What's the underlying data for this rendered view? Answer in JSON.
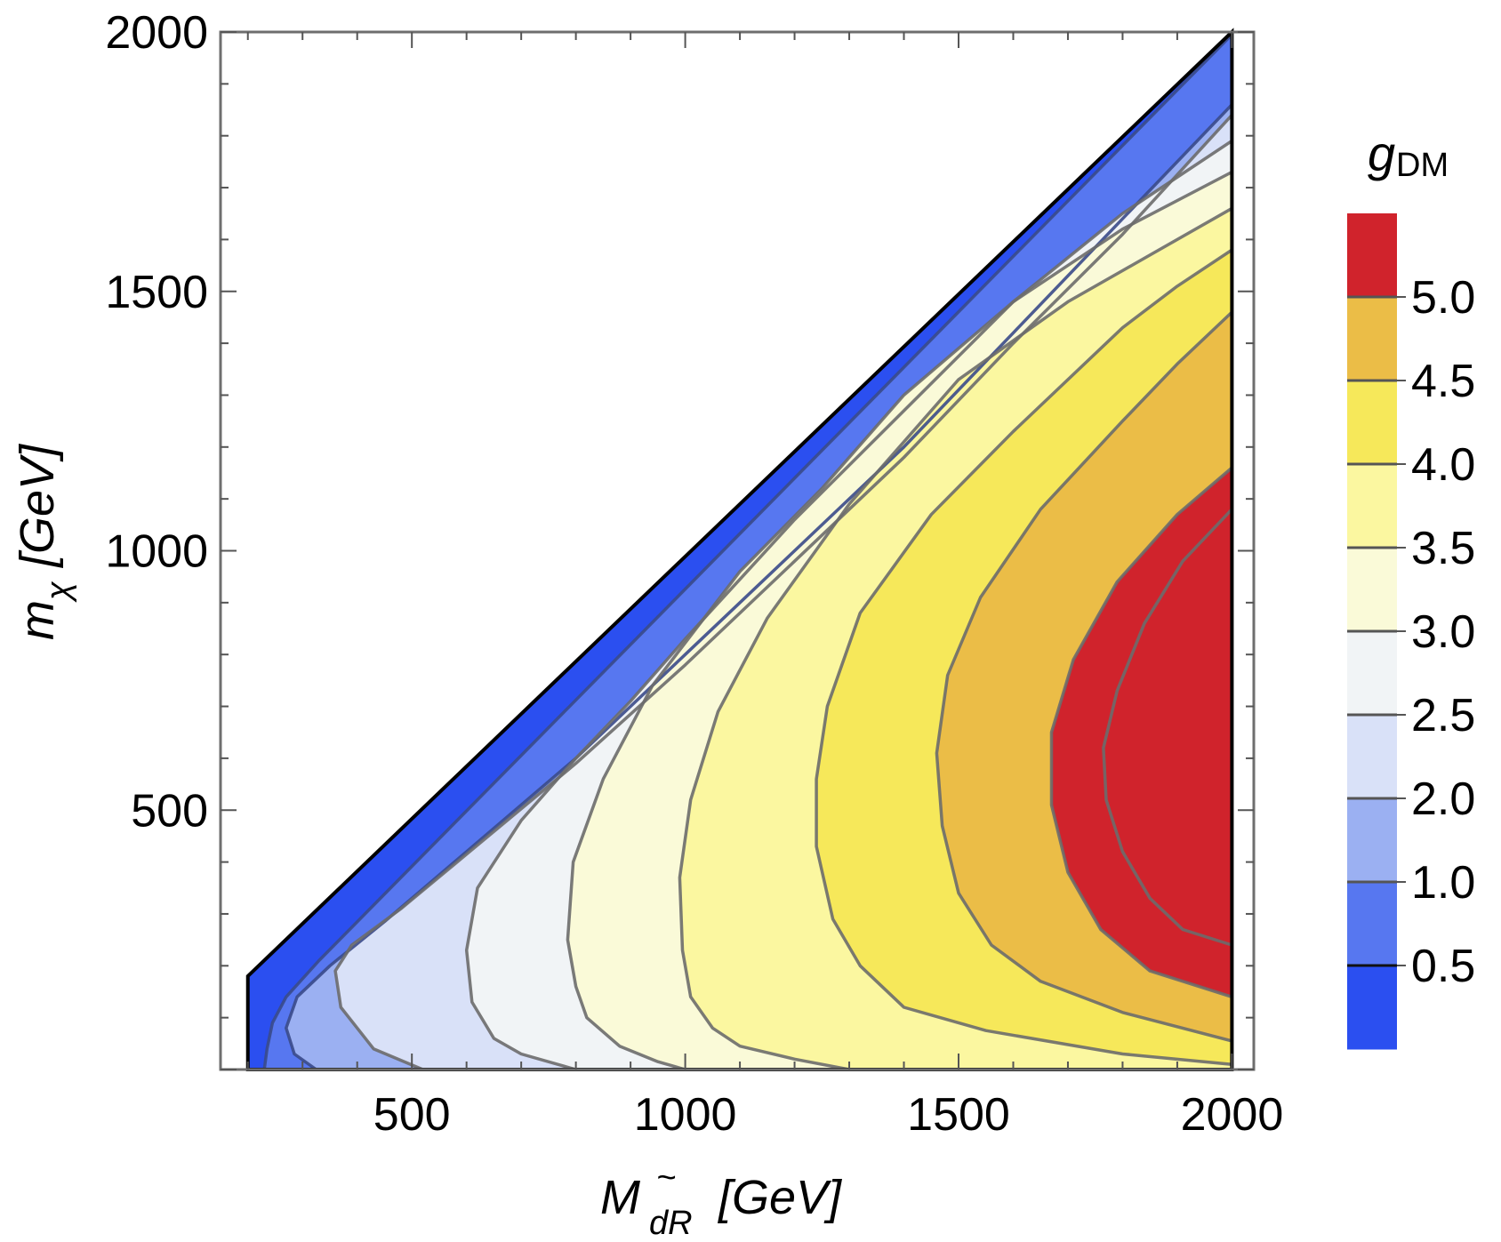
{
  "chart_data": {
    "type": "contour",
    "title": "",
    "xlabel": {
      "main": "M",
      "sub": "dR",
      "accent": "~",
      "units": "[GeV]"
    },
    "ylabel": {
      "main": "m",
      "sub": "χ",
      "units": "[GeV]"
    },
    "xlim": [
      150,
      2040
    ],
    "ylim": [
      0,
      2000
    ],
    "xticks": [
      500,
      1000,
      1500,
      2000
    ],
    "yticks": [
      500,
      1000,
      1500,
      2000
    ],
    "xtick_labels": [
      "500",
      "1000",
      "1500",
      "2000"
    ],
    "ytick_labels": [
      "500",
      "1000",
      "1500",
      "2000"
    ],
    "domain": {
      "x_min": 200,
      "x_max": 2000,
      "constraint": "m_chi < M_dR",
      "corner": [
        200,
        180
      ]
    },
    "legend": {
      "title": "g",
      "title_sub": "DM",
      "levels": [
        "0.5",
        "1.0",
        "2.0",
        "2.5",
        "3.0",
        "3.5",
        "4.0",
        "4.5",
        "5.0"
      ],
      "colors": [
        "#2b4ff0",
        "#5777f0",
        "#9bb0f2",
        "#d9e1f8",
        "#f1f4f6",
        "#fafad8",
        "#fbf7a0",
        "#f6e85a",
        "#ebbd47",
        "#d0232c"
      ]
    },
    "contours": [
      {
        "level": 0.5,
        "points": [
          [
            230,
            0
          ],
          [
            235,
            40
          ],
          [
            245,
            90
          ],
          [
            270,
            140
          ],
          [
            330,
            210
          ],
          [
            2000,
            1995
          ]
        ]
      },
      {
        "level": 1.0,
        "points": [
          [
            325,
            0
          ],
          [
            285,
            30
          ],
          [
            270,
            80
          ],
          [
            290,
            140
          ],
          [
            350,
            200
          ],
          [
            450,
            285
          ],
          [
            600,
            420
          ],
          [
            800,
            600
          ],
          [
            1000,
            800
          ],
          [
            1200,
            1000
          ],
          [
            1400,
            1200
          ],
          [
            1600,
            1420
          ],
          [
            1800,
            1640
          ],
          [
            2000,
            1860
          ]
        ]
      },
      {
        "level": 2.0,
        "points": [
          [
            520,
            0
          ],
          [
            430,
            40
          ],
          [
            370,
            120
          ],
          [
            360,
            190
          ],
          [
            390,
            240
          ],
          [
            480,
            310
          ],
          [
            600,
            415
          ],
          [
            800,
            590
          ],
          [
            1000,
            780
          ],
          [
            1200,
            980
          ],
          [
            1400,
            1180
          ],
          [
            1600,
            1400
          ],
          [
            1800,
            1610
          ],
          [
            2000,
            1840
          ]
        ]
      },
      {
        "level": 2.5,
        "points": [
          [
            800,
            0
          ],
          [
            700,
            30
          ],
          [
            650,
            60
          ],
          [
            610,
            130
          ],
          [
            600,
            230
          ],
          [
            620,
            350
          ],
          [
            700,
            480
          ],
          [
            800,
            600
          ],
          [
            900,
            710
          ],
          [
            1000,
            830
          ],
          [
            1200,
            1060
          ],
          [
            1400,
            1270
          ],
          [
            1600,
            1480
          ],
          [
            1800,
            1650
          ],
          [
            2000,
            1790
          ]
        ]
      },
      {
        "level": 3.0,
        "points": [
          [
            1000,
            0
          ],
          [
            950,
            15
          ],
          [
            880,
            45
          ],
          [
            820,
            100
          ],
          [
            800,
            160
          ],
          [
            785,
            250
          ],
          [
            795,
            400
          ],
          [
            850,
            560
          ],
          [
            940,
            740
          ],
          [
            1100,
            960
          ],
          [
            1250,
            1120
          ],
          [
            1400,
            1300
          ],
          [
            1600,
            1480
          ],
          [
            1800,
            1620
          ],
          [
            2000,
            1730
          ]
        ]
      },
      {
        "level": 3.5,
        "points": [
          [
            1300,
            0
          ],
          [
            1200,
            20
          ],
          [
            1100,
            45
          ],
          [
            1050,
            80
          ],
          [
            1010,
            140
          ],
          [
            995,
            230
          ],
          [
            990,
            370
          ],
          [
            1010,
            520
          ],
          [
            1060,
            690
          ],
          [
            1150,
            870
          ],
          [
            1300,
            1090
          ],
          [
            1500,
            1330
          ],
          [
            1700,
            1480
          ],
          [
            1850,
            1570
          ],
          [
            2000,
            1660
          ]
        ]
      },
      {
        "level": 4.0,
        "points": [
          [
            2000,
            10
          ],
          [
            1800,
            30
          ],
          [
            1550,
            75
          ],
          [
            1400,
            120
          ],
          [
            1320,
            200
          ],
          [
            1270,
            290
          ],
          [
            1240,
            430
          ],
          [
            1240,
            560
          ],
          [
            1260,
            700
          ],
          [
            1320,
            880
          ],
          [
            1450,
            1070
          ],
          [
            1600,
            1230
          ],
          [
            1800,
            1430
          ],
          [
            1900,
            1510
          ],
          [
            2000,
            1580
          ]
        ]
      },
      {
        "level": 4.5,
        "points": [
          [
            2000,
            55
          ],
          [
            1800,
            110
          ],
          [
            1650,
            170
          ],
          [
            1560,
            240
          ],
          [
            1500,
            340
          ],
          [
            1470,
            470
          ],
          [
            1460,
            610
          ],
          [
            1480,
            760
          ],
          [
            1540,
            910
          ],
          [
            1650,
            1080
          ],
          [
            1800,
            1250
          ],
          [
            1900,
            1360
          ],
          [
            2000,
            1460
          ]
        ]
      },
      {
        "level": 5.0,
        "points": [
          [
            2000,
            140
          ],
          [
            1850,
            190
          ],
          [
            1760,
            270
          ],
          [
            1700,
            380
          ],
          [
            1670,
            510
          ],
          [
            1670,
            650
          ],
          [
            1710,
            790
          ],
          [
            1790,
            940
          ],
          [
            1900,
            1070
          ],
          [
            2000,
            1160
          ]
        ]
      },
      {
        "level": 5.5,
        "points": [
          [
            2000,
            240
          ],
          [
            1910,
            270
          ],
          [
            1850,
            330
          ],
          [
            1800,
            420
          ],
          [
            1770,
            520
          ],
          [
            1765,
            620
          ],
          [
            1790,
            730
          ],
          [
            1840,
            860
          ],
          [
            1910,
            980
          ],
          [
            2000,
            1080
          ]
        ]
      }
    ]
  }
}
